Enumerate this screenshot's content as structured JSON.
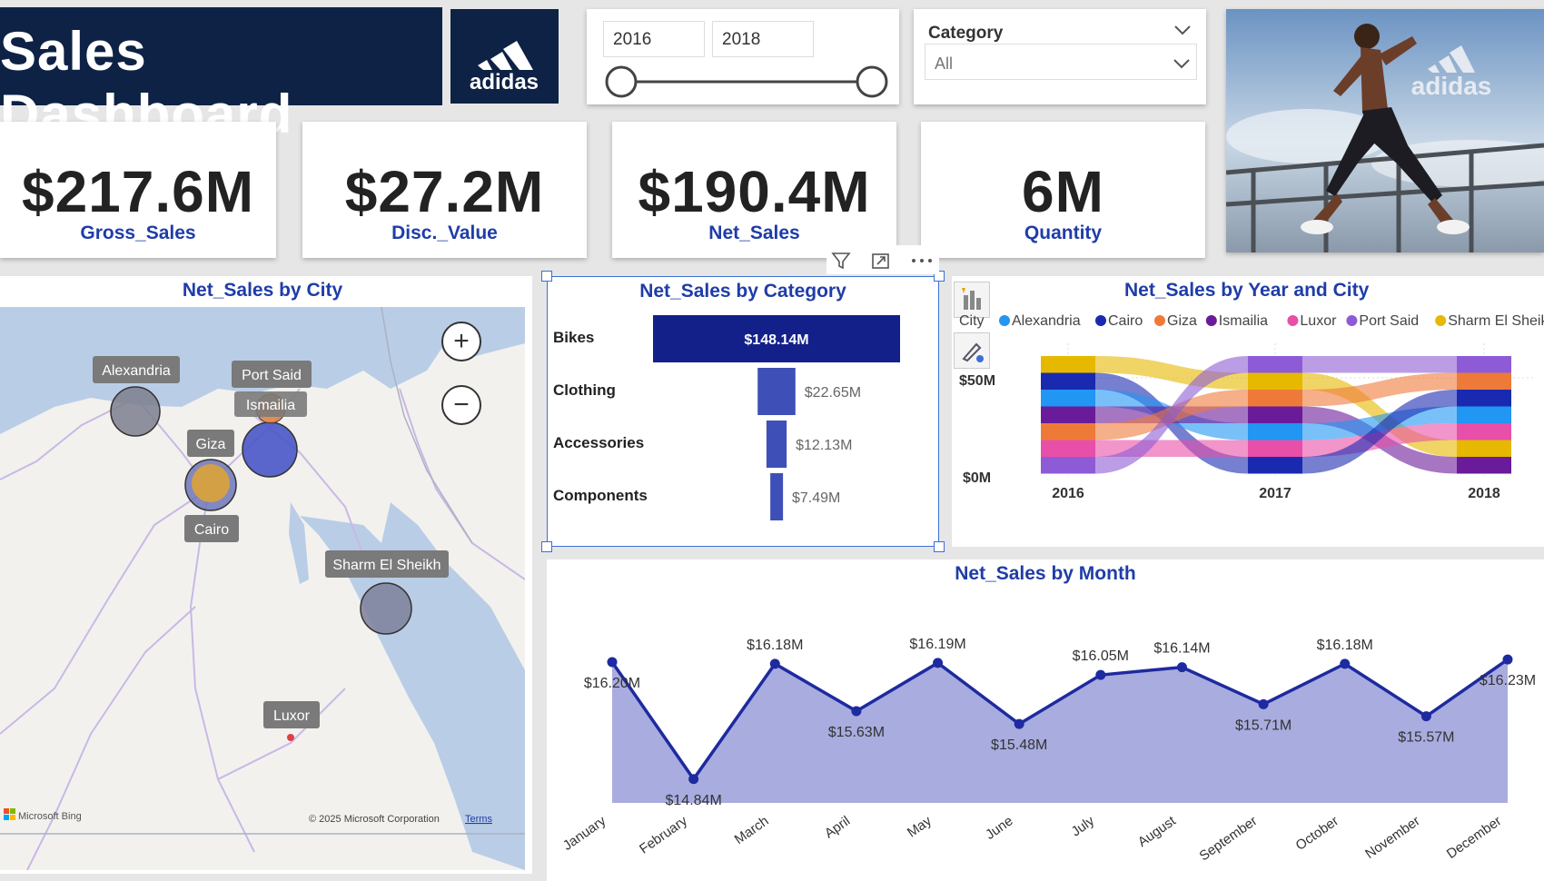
{
  "header": {
    "title": "Sales Dashboard",
    "brand": "adidas"
  },
  "colors": {
    "navy": "#0d2245",
    "accent": "#1f3da8",
    "bar": "#13208a",
    "area": "#a3a8dd",
    "line": "#1e2a9f"
  },
  "year_slider": {
    "from": "2016",
    "to": "2018"
  },
  "category_filter": {
    "label": "Category",
    "selected": "All"
  },
  "hero_image": {
    "brand_watermark": "adidas"
  },
  "kpis": [
    {
      "value": "$217.6M",
      "label": "Gross_Sales"
    },
    {
      "value": "$27.2M",
      "label": "Disc._Value"
    },
    {
      "value": "$190.4M",
      "label": "Net_Sales"
    },
    {
      "value": "6M",
      "label": "Quantity"
    }
  ],
  "map": {
    "title": "Net_Sales by City",
    "cities": [
      {
        "name": "Alexandria",
        "color": "#7d7f8e"
      },
      {
        "name": "Port Said",
        "color": "#8a5a7a"
      },
      {
        "name": "Ismailia",
        "color": "#e07a3a"
      },
      {
        "name": "Giza",
        "color": "#d7a13e"
      },
      {
        "name": "Cairo",
        "color": "#4956c8"
      },
      {
        "name": "Sharm El Sheikh",
        "color": "#7c7f9a"
      },
      {
        "name": "Luxor",
        "color": "#e04040"
      }
    ],
    "attribution": "Microsoft Bing",
    "copyright": "© 2025 Microsoft Corporation",
    "terms": "Terms",
    "zoom_in": "+",
    "zoom_out": "−"
  },
  "chart_data": [
    {
      "type": "bar",
      "title": "Net_Sales by Category",
      "categories": [
        "Bikes",
        "Clothing",
        "Accessories",
        "Components"
      ],
      "values": [
        148.14,
        22.65,
        12.13,
        7.49
      ],
      "labels": [
        "$148.14M",
        "$22.65M",
        "$12.13M",
        "$7.49M"
      ],
      "unit": "$M",
      "orientation": "horizontal-funnel"
    },
    {
      "type": "area",
      "title": "Net_Sales by Year and City",
      "legend_title": "City",
      "legend_position": "top",
      "x": [
        "2016",
        "2017",
        "2018"
      ],
      "y_ticks": [
        "$50M",
        "$0M"
      ],
      "series": [
        {
          "name": "Alexandria",
          "color": "#2196f3"
        },
        {
          "name": "Cairo",
          "color": "#1a2ab0"
        },
        {
          "name": "Giza",
          "color": "#ee7a3a"
        },
        {
          "name": "Ismailia",
          "color": "#6a1b9a"
        },
        {
          "name": "Luxor",
          "color": "#e84fa8"
        },
        {
          "name": "Port Said",
          "color": "#8e5bd6"
        },
        {
          "name": "Sharm El Sheikh",
          "color": "#e6b800"
        }
      ],
      "rank_order": [
        [
          "Sharm El Sheikh",
          "Cairo",
          "Alexandria",
          "Ismailia",
          "Giza",
          "Luxor",
          "Port Said"
        ],
        [
          "Port Said",
          "Sharm El Sheikh",
          "Giza",
          "Ismailia",
          "Alexandria",
          "Luxor",
          "Cairo"
        ],
        [
          "Port Said",
          "Giza",
          "Cairo",
          "Alexandria",
          "Luxor",
          "Sharm El Sheikh",
          "Ismailia"
        ]
      ]
    },
    {
      "type": "line",
      "title": "Net_Sales by Month",
      "area_fill": true,
      "categories": [
        "January",
        "February",
        "March",
        "April",
        "May",
        "June",
        "July",
        "August",
        "September",
        "October",
        "November",
        "December"
      ],
      "values": [
        16.2,
        14.84,
        16.18,
        15.63,
        16.19,
        15.48,
        16.05,
        16.14,
        15.71,
        16.18,
        15.57,
        16.23
      ],
      "labels": [
        "$16.20M",
        "$14.84M",
        "$16.18M",
        "$15.63M",
        "$16.19M",
        "$15.48M",
        "$16.05M",
        "$16.14M",
        "$15.71M",
        "$16.18M",
        "$15.57M",
        "$16.23M"
      ],
      "label_side": [
        "below",
        "below",
        "above",
        "below",
        "above",
        "below",
        "above",
        "above",
        "below",
        "above",
        "below",
        "below"
      ],
      "unit": "$M"
    }
  ]
}
